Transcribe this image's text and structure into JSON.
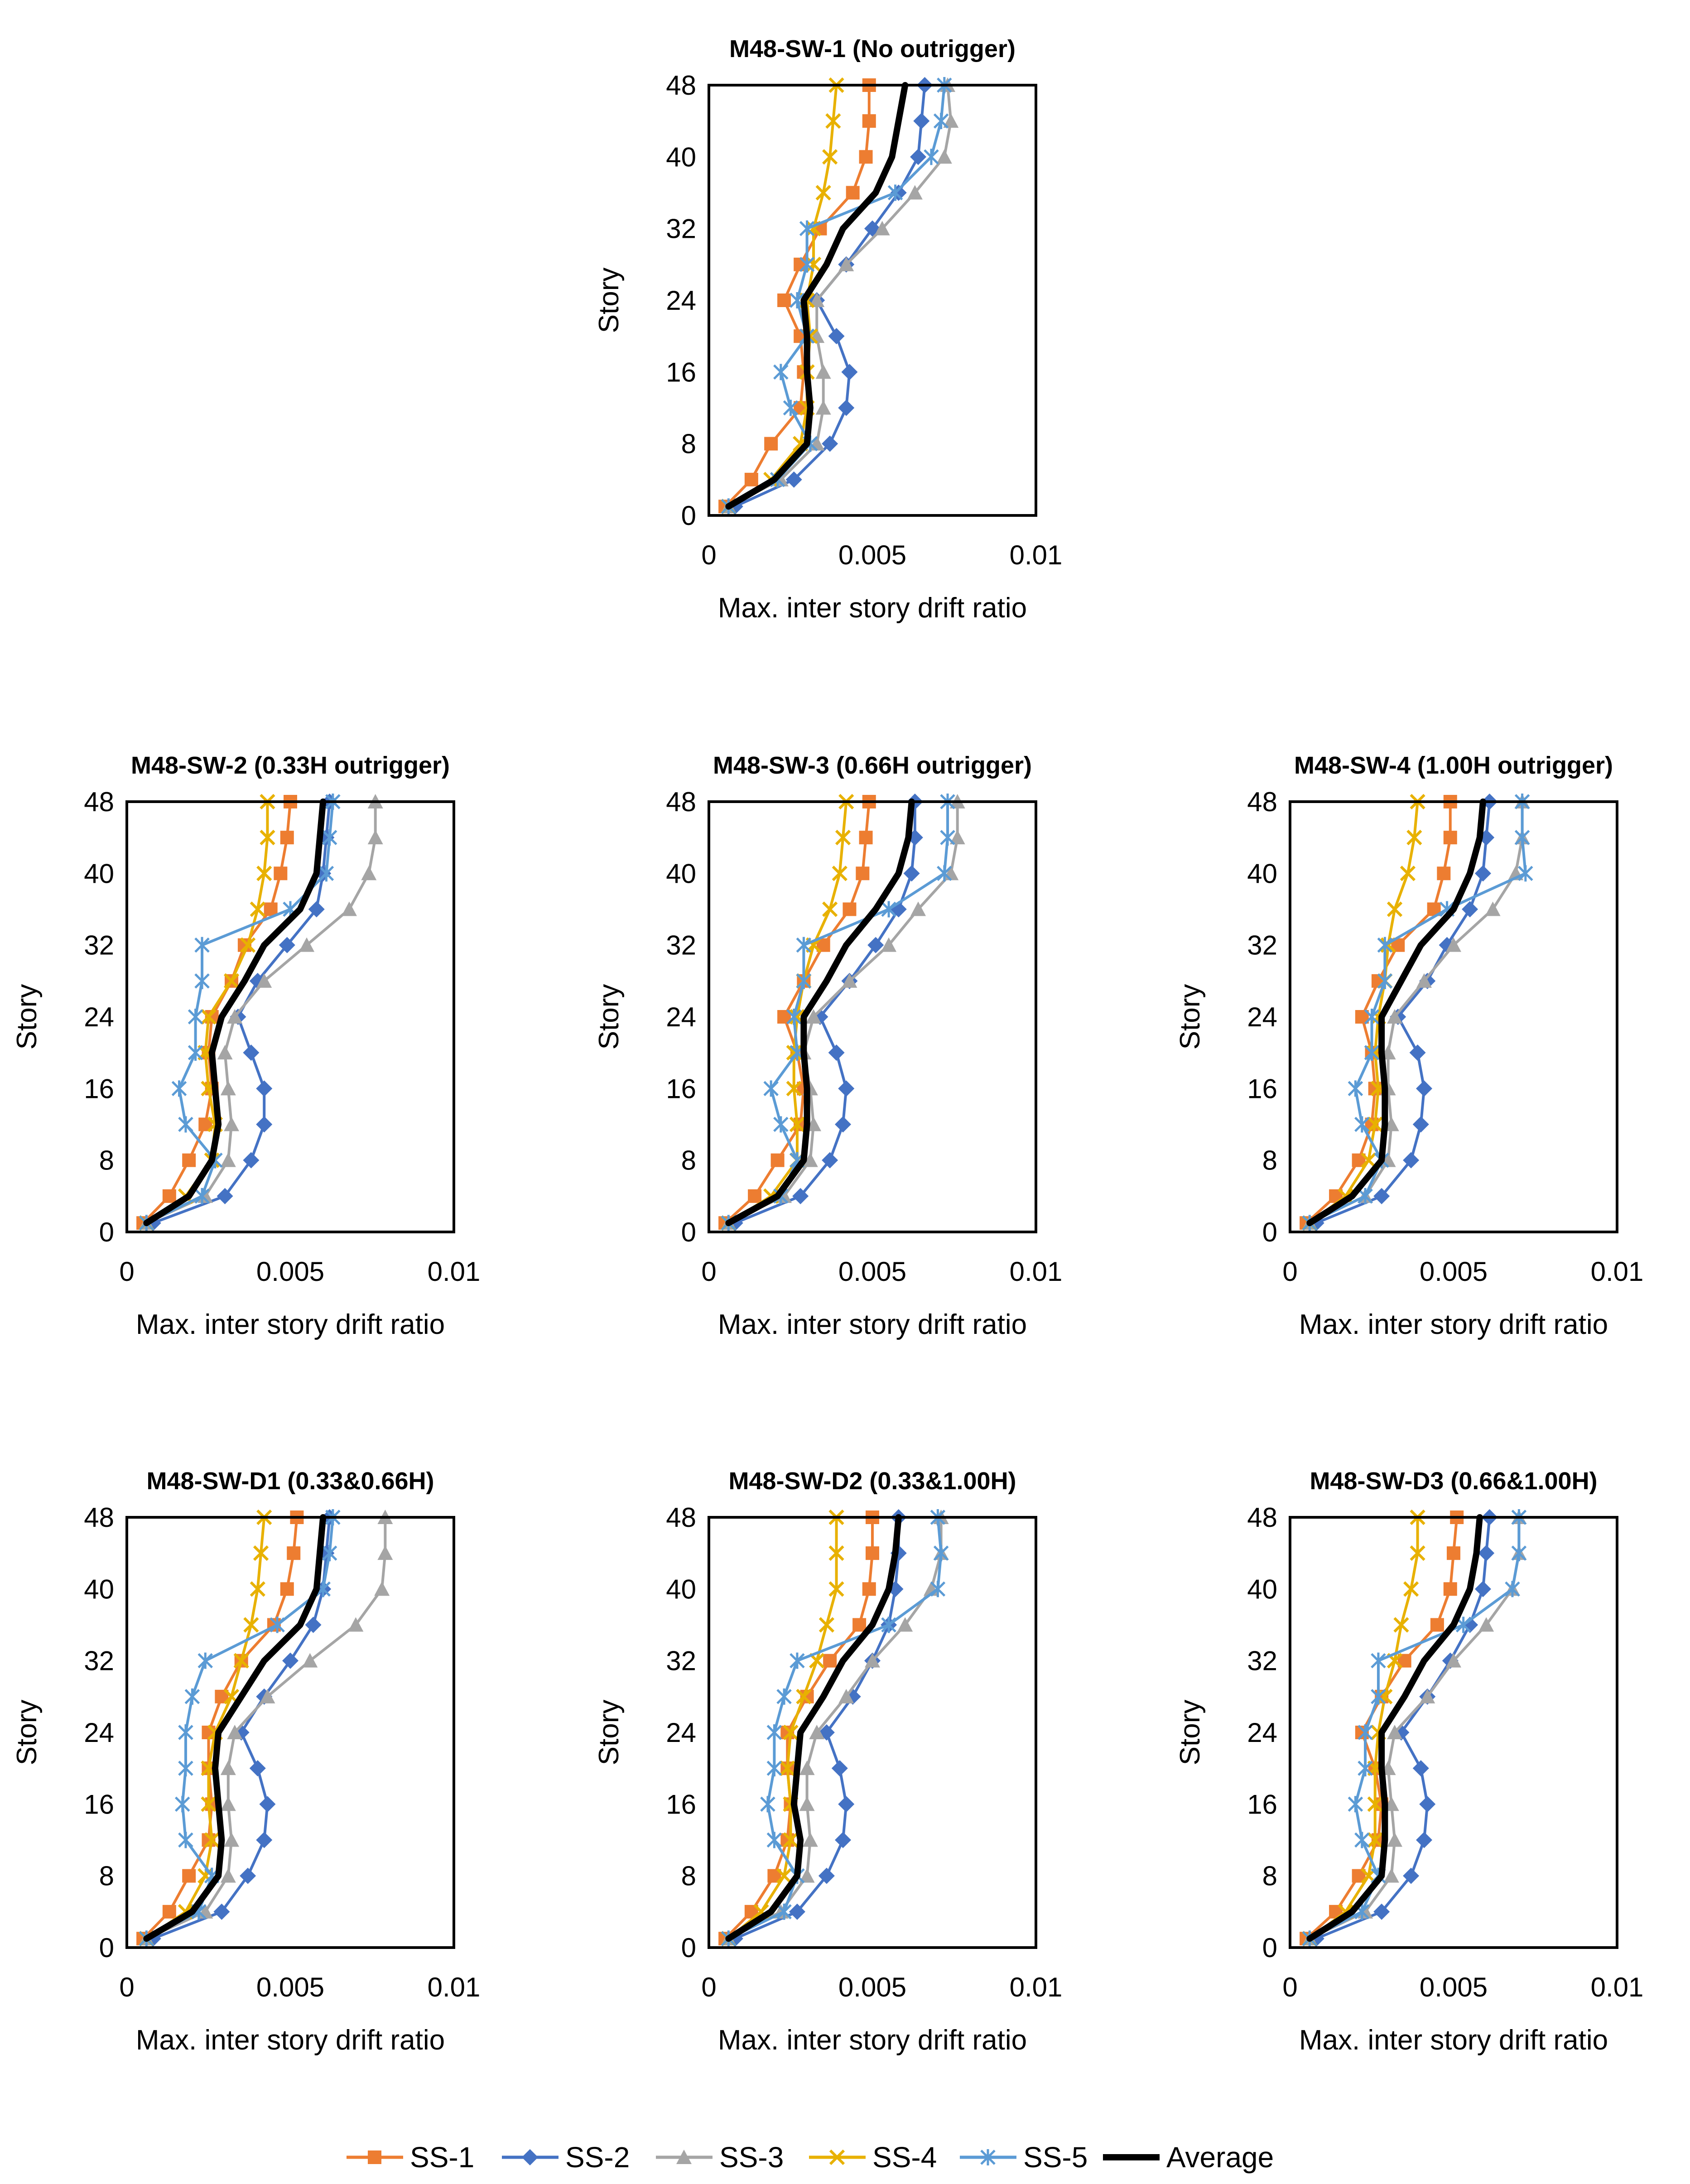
{
  "figure": {
    "series_styles": [
      {
        "name": "SS-1",
        "color": "#ED7D31",
        "marker": "square"
      },
      {
        "name": "SS-2",
        "color": "#4472C4",
        "marker": "diamond"
      },
      {
        "name": "SS-3",
        "color": "#A5A5A5",
        "marker": "triangle"
      },
      {
        "name": "SS-4",
        "color": "#E8B100",
        "marker": "x"
      },
      {
        "name": "SS-5",
        "color": "#5B9BD5",
        "marker": "star"
      },
      {
        "name": "Average",
        "color": "#000000",
        "marker": "none"
      }
    ]
  },
  "chart_data": [
    {
      "type": "line",
      "title": "M48-SW-1 (No outrigger)",
      "xlabel": "Max. inter story drift ratio",
      "ylabel": "Story",
      "xlim": [
        0,
        0.01
      ],
      "ylim": [
        0,
        48
      ],
      "xticks": [
        "0",
        "0.005",
        "0.01"
      ],
      "yticks": [
        "0",
        "8",
        "16",
        "24",
        "32",
        "40",
        "48"
      ],
      "grid": false,
      "legend": "bottom",
      "y": [
        1,
        4,
        8,
        12,
        16,
        20,
        24,
        28,
        32,
        36,
        40,
        44,
        48
      ],
      "series": [
        {
          "name": "SS-1",
          "values": [
            0.0005,
            0.0013,
            0.0019,
            0.0028,
            0.0029,
            0.0028,
            0.0023,
            0.0028,
            0.0034,
            0.0044,
            0.0048,
            0.0049,
            0.0049
          ]
        },
        {
          "name": "SS-2",
          "values": [
            0.0008,
            0.0026,
            0.0037,
            0.0042,
            0.0043,
            0.0039,
            0.0033,
            0.0042,
            0.005,
            0.0058,
            0.0064,
            0.0065,
            0.0066
          ]
        },
        {
          "name": "SS-3",
          "values": [
            0.0006,
            0.0022,
            0.0033,
            0.0035,
            0.0035,
            0.0033,
            0.0033,
            0.0042,
            0.0053,
            0.0063,
            0.0072,
            0.0074,
            0.0073
          ]
        },
        {
          "name": "SS-4",
          "values": [
            0.0006,
            0.0019,
            0.0028,
            0.003,
            0.003,
            0.0031,
            0.003,
            0.0032,
            0.0032,
            0.0035,
            0.0037,
            0.0038,
            0.0039
          ]
        },
        {
          "name": "SS-5",
          "values": [
            0.0006,
            0.0021,
            0.0031,
            0.0025,
            0.0022,
            0.003,
            0.0027,
            0.003,
            0.003,
            0.0057,
            0.0068,
            0.0071,
            0.0072
          ]
        },
        {
          "name": "Average",
          "values": [
            0.0006,
            0.002,
            0.003,
            0.0031,
            0.003,
            0.003,
            0.0029,
            0.0036,
            0.0041,
            0.0051,
            0.0056,
            0.0058,
            0.006
          ]
        }
      ]
    },
    {
      "type": "line",
      "title": "M48-SW-2 (0.33H outrigger)",
      "xlabel": "Max. inter story drift ratio",
      "ylabel": "Story",
      "xlim": [
        0,
        0.01
      ],
      "ylim": [
        0,
        48
      ],
      "xticks": [
        "0",
        "0.005",
        "0.01"
      ],
      "yticks": [
        "0",
        "8",
        "16",
        "24",
        "32",
        "40",
        "48"
      ],
      "grid": false,
      "legend": "bottom",
      "y": [
        1,
        4,
        8,
        12,
        16,
        20,
        24,
        28,
        32,
        36,
        40,
        44,
        48
      ],
      "series": [
        {
          "name": "SS-1",
          "values": [
            0.0005,
            0.0013,
            0.0019,
            0.0024,
            0.0026,
            0.0025,
            0.0026,
            0.0032,
            0.0036,
            0.0044,
            0.0047,
            0.0049,
            0.005
          ]
        },
        {
          "name": "SS-2",
          "values": [
            0.0008,
            0.003,
            0.0038,
            0.0042,
            0.0042,
            0.0038,
            0.0034,
            0.004,
            0.0049,
            0.0058,
            0.006,
            0.0061,
            0.0062
          ]
        },
        {
          "name": "SS-3",
          "values": [
            0.0006,
            0.0024,
            0.0031,
            0.0032,
            0.0031,
            0.003,
            0.0033,
            0.0042,
            0.0055,
            0.0068,
            0.0074,
            0.0076,
            0.0076
          ]
        },
        {
          "name": "SS-4",
          "values": [
            0.0006,
            0.0018,
            0.0026,
            0.0027,
            0.0025,
            0.0024,
            0.0025,
            0.0032,
            0.0037,
            0.004,
            0.0042,
            0.0043,
            0.0043
          ]
        },
        {
          "name": "SS-5",
          "values": [
            0.0006,
            0.0023,
            0.0027,
            0.0018,
            0.0016,
            0.0021,
            0.0021,
            0.0023,
            0.0023,
            0.005,
            0.0061,
            0.0062,
            0.0063
          ]
        },
        {
          "name": "Average",
          "values": [
            0.0006,
            0.0019,
            0.0026,
            0.0028,
            0.0027,
            0.0026,
            0.0029,
            0.0036,
            0.0042,
            0.0053,
            0.0058,
            0.0059,
            0.006
          ]
        }
      ]
    },
    {
      "type": "line",
      "title": "M48-SW-3 (0.66H outrigger)",
      "xlabel": "Max. inter story drift ratio",
      "ylabel": "Story",
      "xlim": [
        0,
        0.01
      ],
      "ylim": [
        0,
        48
      ],
      "xticks": [
        "0",
        "0.005",
        "0.01"
      ],
      "yticks": [
        "0",
        "8",
        "16",
        "24",
        "32",
        "40",
        "48"
      ],
      "grid": false,
      "legend": "bottom",
      "y": [
        1,
        4,
        8,
        12,
        16,
        20,
        24,
        28,
        32,
        36,
        40,
        44,
        48
      ],
      "series": [
        {
          "name": "SS-1",
          "values": [
            0.0005,
            0.0014,
            0.0021,
            0.0028,
            0.0029,
            0.0027,
            0.0023,
            0.0029,
            0.0035,
            0.0043,
            0.0047,
            0.0048,
            0.0049
          ]
        },
        {
          "name": "SS-2",
          "values": [
            0.0008,
            0.0028,
            0.0037,
            0.0041,
            0.0042,
            0.0039,
            0.0034,
            0.0043,
            0.0051,
            0.0058,
            0.0062,
            0.0063,
            0.0063
          ]
        },
        {
          "name": "SS-3",
          "values": [
            0.0006,
            0.0023,
            0.0031,
            0.0032,
            0.0031,
            0.0029,
            0.0032,
            0.0043,
            0.0055,
            0.0064,
            0.0074,
            0.0076,
            0.0076
          ]
        },
        {
          "name": "SS-4",
          "values": [
            0.0006,
            0.0019,
            0.0027,
            0.0027,
            0.0026,
            0.0026,
            0.0027,
            0.0029,
            0.0032,
            0.0037,
            0.004,
            0.0041,
            0.0042
          ]
        },
        {
          "name": "SS-5",
          "values": [
            0.0006,
            0.0022,
            0.0027,
            0.0022,
            0.0019,
            0.0027,
            0.0026,
            0.0029,
            0.0029,
            0.0055,
            0.0072,
            0.0073,
            0.0073
          ]
        },
        {
          "name": "Average",
          "values": [
            0.0006,
            0.0021,
            0.0029,
            0.003,
            0.003,
            0.0029,
            0.0029,
            0.0036,
            0.0042,
            0.0051,
            0.0058,
            0.0061,
            0.0062
          ]
        }
      ]
    },
    {
      "type": "line",
      "title": "M48-SW-4 (1.00H outrigger)",
      "xlabel": "Max. inter story drift ratio",
      "ylabel": "Story",
      "xlim": [
        0,
        0.01
      ],
      "ylim": [
        0,
        48
      ],
      "xticks": [
        "0",
        "0.005",
        "0.01"
      ],
      "yticks": [
        "0",
        "8",
        "16",
        "24",
        "32",
        "40",
        "48"
      ],
      "grid": false,
      "legend": "bottom",
      "y": [
        1,
        4,
        8,
        12,
        16,
        20,
        24,
        28,
        32,
        36,
        40,
        44,
        48
      ],
      "series": [
        {
          "name": "SS-1",
          "values": [
            0.0005,
            0.0014,
            0.0021,
            0.0025,
            0.0026,
            0.0025,
            0.0022,
            0.0027,
            0.0033,
            0.0044,
            0.0047,
            0.0049,
            0.0049
          ]
        },
        {
          "name": "SS-2",
          "values": [
            0.0008,
            0.0028,
            0.0037,
            0.004,
            0.0041,
            0.0039,
            0.0033,
            0.0042,
            0.0048,
            0.0055,
            0.0059,
            0.006,
            0.0061
          ]
        },
        {
          "name": "SS-3",
          "values": [
            0.0006,
            0.0023,
            0.003,
            0.0031,
            0.003,
            0.003,
            0.0032,
            0.0041,
            0.005,
            0.0062,
            0.0069,
            0.0071,
            0.0071
          ]
        },
        {
          "name": "SS-4",
          "values": [
            0.0006,
            0.0017,
            0.0024,
            0.0026,
            0.0027,
            0.0026,
            0.0027,
            0.0029,
            0.003,
            0.0032,
            0.0036,
            0.0038,
            0.0039
          ]
        },
        {
          "name": "SS-5",
          "values": [
            0.0006,
            0.0023,
            0.0028,
            0.0022,
            0.002,
            0.0025,
            0.0025,
            0.0029,
            0.0029,
            0.0048,
            0.0072,
            0.0071,
            0.0071
          ]
        },
        {
          "name": "Average",
          "values": [
            0.0006,
            0.0019,
            0.0028,
            0.0029,
            0.0029,
            0.0028,
            0.0028,
            0.0034,
            0.004,
            0.005,
            0.0055,
            0.0058,
            0.0059
          ]
        }
      ]
    },
    {
      "type": "line",
      "title": "M48-SW-D1 (0.33&0.66H)",
      "xlabel": "Max. inter story drift ratio",
      "ylabel": "Story",
      "xlim": [
        0,
        0.01
      ],
      "ylim": [
        0,
        48
      ],
      "xticks": [
        "0",
        "0.005",
        "0.01"
      ],
      "yticks": [
        "0",
        "8",
        "16",
        "24",
        "32",
        "40",
        "48"
      ],
      "grid": false,
      "legend": "bottom",
      "y": [
        1,
        4,
        8,
        12,
        16,
        20,
        24,
        28,
        32,
        36,
        40,
        44,
        48
      ],
      "series": [
        {
          "name": "SS-1",
          "values": [
            0.0005,
            0.0013,
            0.0019,
            0.0025,
            0.0026,
            0.0025,
            0.0025,
            0.0029,
            0.0035,
            0.0045,
            0.0049,
            0.0051,
            0.0052
          ]
        },
        {
          "name": "SS-2",
          "values": [
            0.0008,
            0.0029,
            0.0037,
            0.0042,
            0.0043,
            0.004,
            0.0035,
            0.0042,
            0.005,
            0.0057,
            0.006,
            0.0061,
            0.0062
          ]
        },
        {
          "name": "SS-3",
          "values": [
            0.0006,
            0.0024,
            0.0031,
            0.0032,
            0.0031,
            0.0031,
            0.0033,
            0.0043,
            0.0056,
            0.007,
            0.0078,
            0.0079,
            0.0079
          ]
        },
        {
          "name": "SS-4",
          "values": [
            0.0006,
            0.0018,
            0.0024,
            0.0026,
            0.0025,
            0.0025,
            0.0027,
            0.0032,
            0.0035,
            0.0038,
            0.004,
            0.0041,
            0.0042
          ]
        },
        {
          "name": "SS-5",
          "values": [
            0.0006,
            0.0022,
            0.0026,
            0.0018,
            0.0017,
            0.0018,
            0.0018,
            0.002,
            0.0024,
            0.0046,
            0.006,
            0.0062,
            0.0063
          ]
        },
        {
          "name": "Average",
          "values": [
            0.0006,
            0.002,
            0.0028,
            0.0029,
            0.0028,
            0.0027,
            0.0028,
            0.0035,
            0.0042,
            0.0053,
            0.0058,
            0.0059,
            0.006
          ]
        }
      ]
    },
    {
      "type": "line",
      "title": "M48-SW-D2 (0.33&1.00H)",
      "xlabel": "Max. inter story drift ratio",
      "ylabel": "Story",
      "xlim": [
        0,
        0.01
      ],
      "ylim": [
        0,
        48
      ],
      "xticks": [
        "0",
        "0.005",
        "0.01"
      ],
      "yticks": [
        "0",
        "8",
        "16",
        "24",
        "32",
        "40",
        "48"
      ],
      "grid": false,
      "legend": "bottom",
      "y": [
        1,
        4,
        8,
        12,
        16,
        20,
        24,
        28,
        32,
        36,
        40,
        44,
        48
      ],
      "series": [
        {
          "name": "SS-1",
          "values": [
            0.0005,
            0.0013,
            0.002,
            0.0024,
            0.0025,
            0.0024,
            0.0024,
            0.003,
            0.0037,
            0.0046,
            0.0049,
            0.005,
            0.005
          ]
        },
        {
          "name": "SS-2",
          "values": [
            0.0008,
            0.0027,
            0.0036,
            0.0041,
            0.0042,
            0.004,
            0.0036,
            0.0044,
            0.005,
            0.0055,
            0.0057,
            0.0058,
            0.0058
          ]
        },
        {
          "name": "SS-3",
          "values": [
            0.0006,
            0.0022,
            0.003,
            0.0031,
            0.003,
            0.003,
            0.0033,
            0.0042,
            0.005,
            0.006,
            0.0068,
            0.0071,
            0.0071
          ]
        },
        {
          "name": "SS-4",
          "values": [
            0.0006,
            0.0016,
            0.0023,
            0.0025,
            0.0025,
            0.0024,
            0.0025,
            0.0029,
            0.0033,
            0.0036,
            0.0039,
            0.0039,
            0.0039
          ]
        },
        {
          "name": "SS-5",
          "values": [
            0.0006,
            0.0023,
            0.0027,
            0.002,
            0.0018,
            0.002,
            0.002,
            0.0023,
            0.0027,
            0.0055,
            0.007,
            0.0071,
            0.007
          ]
        },
        {
          "name": "Average",
          "values": [
            0.0006,
            0.0019,
            0.0027,
            0.0028,
            0.0026,
            0.0027,
            0.0028,
            0.0035,
            0.0041,
            0.005,
            0.0055,
            0.0057,
            0.0058
          ]
        }
      ]
    },
    {
      "type": "line",
      "title": "M48-SW-D3 (0.66&1.00H)",
      "xlabel": "Max. inter story drift ratio",
      "ylabel": "Story",
      "xlim": [
        0,
        0.01
      ],
      "ylim": [
        0,
        48
      ],
      "xticks": [
        "0",
        "0.005",
        "0.01"
      ],
      "yticks": [
        "0",
        "8",
        "16",
        "24",
        "32",
        "40",
        "48"
      ],
      "grid": false,
      "legend": "bottom",
      "y": [
        1,
        4,
        8,
        12,
        16,
        20,
        24,
        28,
        32,
        36,
        40,
        44,
        48
      ],
      "series": [
        {
          "name": "SS-1",
          "values": [
            0.0005,
            0.0014,
            0.0021,
            0.0027,
            0.0028,
            0.0026,
            0.0022,
            0.0028,
            0.0035,
            0.0045,
            0.0049,
            0.005,
            0.0051
          ]
        },
        {
          "name": "SS-2",
          "values": [
            0.0008,
            0.0028,
            0.0037,
            0.0041,
            0.0042,
            0.004,
            0.0034,
            0.0042,
            0.0049,
            0.0055,
            0.0059,
            0.006,
            0.0061
          ]
        },
        {
          "name": "SS-3",
          "values": [
            0.0006,
            0.0023,
            0.0031,
            0.0032,
            0.0031,
            0.003,
            0.0032,
            0.0042,
            0.005,
            0.006,
            0.0068,
            0.007,
            0.007
          ]
        },
        {
          "name": "SS-4",
          "values": [
            0.0006,
            0.0017,
            0.0024,
            0.0026,
            0.0026,
            0.0026,
            0.0027,
            0.0029,
            0.0032,
            0.0034,
            0.0037,
            0.0039,
            0.0039
          ]
        },
        {
          "name": "SS-5",
          "values": [
            0.0006,
            0.0022,
            0.0027,
            0.0022,
            0.002,
            0.0023,
            0.0023,
            0.0027,
            0.0027,
            0.0053,
            0.0068,
            0.007,
            0.007
          ]
        },
        {
          "name": "Average",
          "values": [
            0.0006,
            0.0019,
            0.0028,
            0.0029,
            0.0029,
            0.0028,
            0.0028,
            0.0035,
            0.0041,
            0.005,
            0.0055,
            0.0057,
            0.0058
          ]
        }
      ]
    }
  ]
}
